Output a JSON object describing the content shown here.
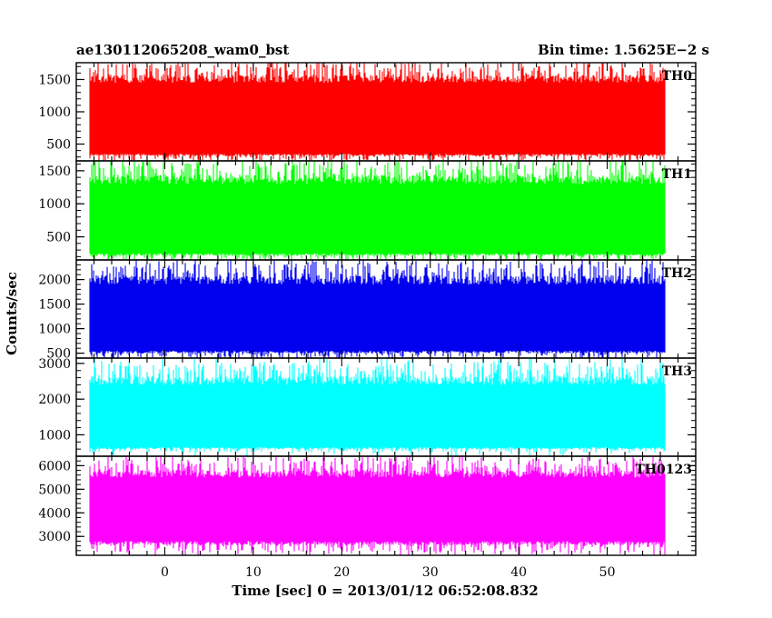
{
  "header": {
    "title": "ae130112065208_wam0_bst",
    "bin_time": "Bin time: 1.5625E−2 s"
  },
  "chart_data": {
    "type": "line",
    "xlabel": "Time [sec] 0 = 2013/01/12 06:52:08.832",
    "ylabel": "Counts/sec",
    "xlim": [
      -10,
      60
    ],
    "data_xrange": [
      -8.5,
      56.5
    ],
    "xticks": [
      0,
      10,
      20,
      30,
      40,
      50
    ],
    "xtick_labels": [
      "0",
      "10",
      "20",
      "30",
      "40",
      "50"
    ],
    "panels": [
      {
        "name": "TH0",
        "color": "#ff0000",
        "ylim": [
          240,
          1760
        ],
        "yticks": [
          500,
          1000,
          1500
        ],
        "ytick_labels": [
          "500",
          "1000",
          "1500"
        ],
        "typical_range": [
          250,
          1750
        ],
        "core_range": [
          350,
          1450
        ]
      },
      {
        "name": "TH1",
        "color": "#00ff00",
        "ylim": [
          150,
          1650
        ],
        "yticks": [
          500,
          1000,
          1500
        ],
        "ytick_labels": [
          "500",
          "1000",
          "1500"
        ],
        "typical_range": [
          150,
          1650
        ],
        "core_range": [
          250,
          1300
        ]
      },
      {
        "name": "TH2",
        "color": "#0000ee",
        "ylim": [
          400,
          2400
        ],
        "yticks": [
          500,
          1000,
          1500,
          2000
        ],
        "ytick_labels": [
          "500",
          "1000",
          "1500",
          "2000"
        ],
        "typical_range": [
          400,
          2350
        ],
        "core_range": [
          550,
          1900
        ]
      },
      {
        "name": "TH3",
        "color": "#00ffff",
        "ylim": [
          400,
          3150
        ],
        "yticks": [
          1000,
          2000,
          3000
        ],
        "ytick_labels": [
          "1000",
          "2000",
          "3000"
        ],
        "typical_range": [
          500,
          3000
        ],
        "core_range": [
          650,
          2400
        ]
      },
      {
        "name": "TH0123",
        "color": "#ff00ff",
        "ylim": [
          2200,
          6400
        ],
        "yticks": [
          3000,
          4000,
          5000,
          6000
        ],
        "ytick_labels": [
          "3000",
          "4000",
          "5000",
          "6000"
        ],
        "typical_range": [
          2300,
          6300
        ],
        "core_range": [
          2800,
          5500
        ]
      }
    ]
  }
}
